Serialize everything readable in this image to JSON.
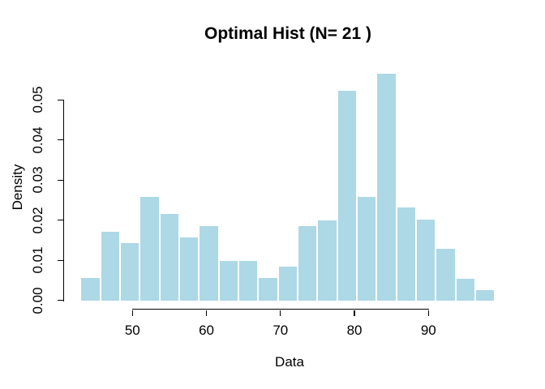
{
  "chart_data": {
    "type": "bar",
    "subtype": "histogram",
    "title": "Optimal Hist (N= 21 )",
    "xlabel": "Data",
    "ylabel": "Density",
    "n_bins": 21,
    "bin_edges": [
      43,
      45.667,
      48.333,
      51,
      53.667,
      56.333,
      59,
      61.667,
      64.333,
      67,
      69.667,
      72.333,
      75,
      77.667,
      80.333,
      83,
      85.667,
      88.333,
      91,
      93.667,
      96.333,
      99
    ],
    "densities": [
      0.0058,
      0.0173,
      0.0145,
      0.026,
      0.0217,
      0.0159,
      0.0187,
      0.01,
      0.01,
      0.0057,
      0.0086,
      0.0187,
      0.0202,
      0.0525,
      0.0261,
      0.0567,
      0.0233,
      0.0203,
      0.013,
      0.0056,
      0.0028
    ],
    "x_ticks": [
      50,
      60,
      70,
      80,
      90
    ],
    "y_ticks": [
      0,
      0.01,
      0.02,
      0.03,
      0.04,
      0.05
    ],
    "y_tick_labels": [
      "0.00",
      "0.01",
      "0.02",
      "0.03",
      "0.04",
      "0.05"
    ],
    "xlim": [
      43,
      99
    ],
    "ylim": [
      0,
      0.0567
    ],
    "grid": "off",
    "legend": "none",
    "bar_fill": "#ADD8E6",
    "bar_border": "#FFFFFF",
    "axis_color": "#000000",
    "background_color": "#FFFFFF"
  }
}
